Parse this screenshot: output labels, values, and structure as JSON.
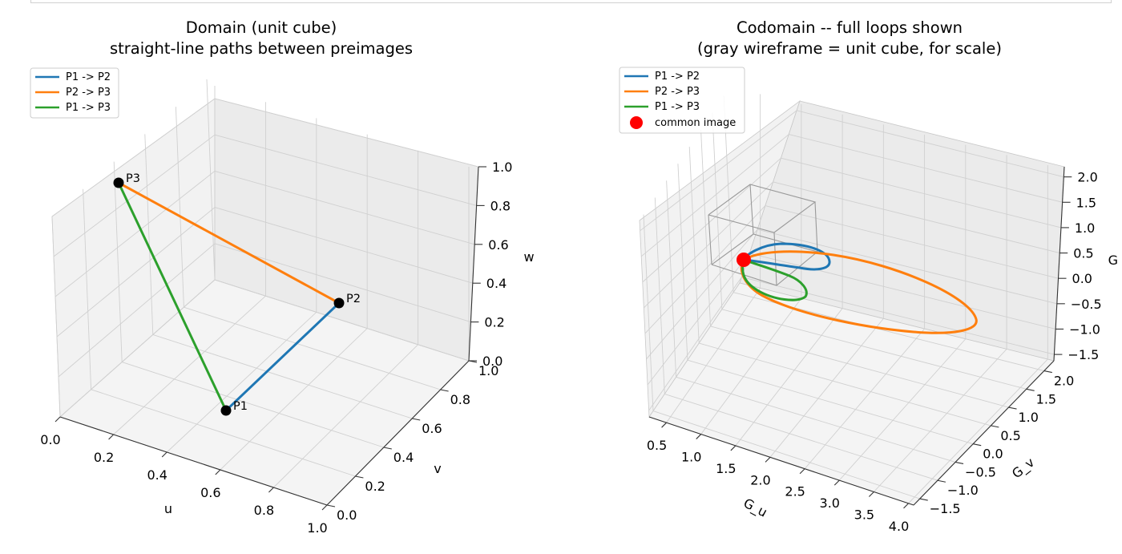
{
  "chart_data": [
    {
      "type": "line3d",
      "title": "Domain (unit cube)",
      "subtitle": "straight-line paths between preimages",
      "xlabel": "u",
      "ylabel": "v",
      "zlabel": "w",
      "xlim": [
        0,
        1
      ],
      "ylim": [
        0,
        1
      ],
      "zlim": [
        0,
        1
      ],
      "xticks": [
        "0.0",
        "0.2",
        "0.4",
        "0.6",
        "0.8",
        "1.0"
      ],
      "yticks": [
        "0.0",
        "0.2",
        "0.4",
        "0.6",
        "0.8",
        "1.0"
      ],
      "zticks": [
        "0.0",
        "0.2",
        "0.4",
        "0.6",
        "0.8",
        "1.0"
      ],
      "grid": true,
      "legend_position": "top-left",
      "points": [
        {
          "label": "P1",
          "u": 0.55,
          "v": 0.1,
          "w": 0.15
        },
        {
          "label": "P2",
          "u": 0.6,
          "v": 0.8,
          "w": 0.45
        },
        {
          "label": "P3",
          "u": 0.05,
          "v": 0.3,
          "w": 0.85
        }
      ],
      "series": [
        {
          "name": "P1 -> P2",
          "color": "#1f77b4",
          "from": "P1",
          "to": "P2"
        },
        {
          "name": "P2 -> P3",
          "color": "#ff7f0e",
          "from": "P2",
          "to": "P3"
        },
        {
          "name": "P1 -> P3",
          "color": "#2ca02c",
          "from": "P1",
          "to": "P3"
        }
      ],
      "point_color": "#000000"
    },
    {
      "type": "line3d",
      "title": "Codomain -- full loops shown",
      "subtitle": "(gray wireframe = unit cube, for scale)",
      "xlabel": "G_u",
      "ylabel": "G_v",
      "zlabel": "G",
      "xlim": [
        0.2,
        4.0
      ],
      "ylim": [
        -1.8,
        2.3
      ],
      "zlim": [
        -1.8,
        2.1
      ],
      "xticks": [
        "0.5",
        "1.0",
        "1.5",
        "2.0",
        "2.5",
        "3.0",
        "3.5",
        "4.0"
      ],
      "yticks": [
        "−1.5",
        "−1.0",
        "−0.5",
        "0.0",
        "0.5",
        "1.0",
        "1.5",
        "2.0"
      ],
      "zticks": [
        "−1.5",
        "−1.0",
        "−0.5",
        "0.0",
        "0.5",
        "1.0",
        "1.5",
        "2.0"
      ],
      "grid": true,
      "legend_position": "top-left",
      "series": [
        {
          "name": "P1 -> P2",
          "color": "#1f77b4"
        },
        {
          "name": "P2 -> P3",
          "color": "#ff7f0e"
        },
        {
          "name": "P1 -> P3",
          "color": "#2ca02c"
        },
        {
          "name": "common image",
          "color": "#ff0000",
          "marker": "point"
        }
      ],
      "common_image": {
        "x": 0.3,
        "y": 0.0,
        "z": 0.3
      },
      "wireframe_color": "#999999"
    }
  ]
}
